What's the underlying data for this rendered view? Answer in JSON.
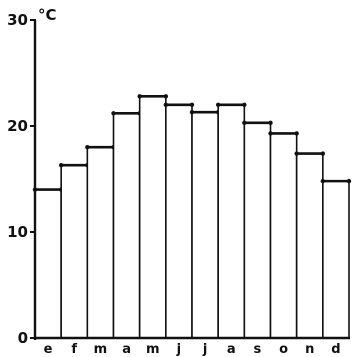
{
  "chart_data": {
    "type": "bar",
    "unit_label": "°C",
    "categories": [
      "e",
      "f",
      "m",
      "a",
      "m",
      "j",
      "j",
      "a",
      "s",
      "o",
      "n",
      "d"
    ],
    "values": [
      14.0,
      16.3,
      18.0,
      21.2,
      22.8,
      22.0,
      21.3,
      22.0,
      20.3,
      19.3,
      17.4,
      14.8
    ],
    "ylim": [
      0,
      30
    ],
    "yticks": [
      0,
      10,
      20,
      30
    ],
    "ytick_labels": [
      "0",
      "10",
      "20",
      "30"
    ],
    "grid": false,
    "colors": {
      "stroke": "#111111",
      "fill": "#ffffff"
    }
  }
}
